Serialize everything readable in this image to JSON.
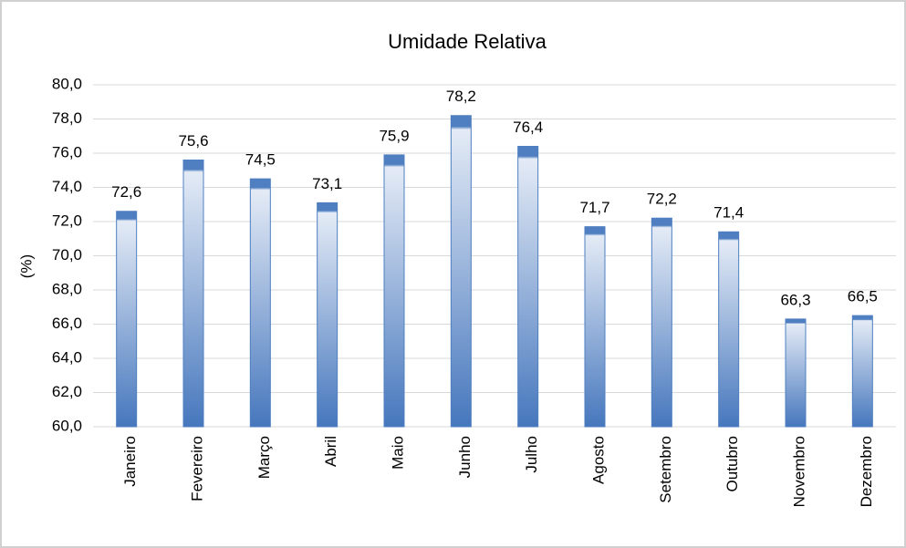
{
  "chart_data": {
    "type": "bar",
    "title": "Umidade Relativa",
    "y_label": "(%)",
    "categories": [
      "Janeiro",
      "Fevereiro",
      "Março",
      "Abril",
      "Maio",
      "Junho",
      "Julho",
      "Agosto",
      "Setembro",
      "Outubro",
      "Novembro",
      "Dezembro"
    ],
    "values": [
      72.6,
      75.6,
      74.5,
      73.1,
      75.9,
      78.2,
      76.4,
      71.7,
      72.2,
      71.4,
      66.3,
      66.5
    ],
    "value_labels": [
      "72,6",
      "75,6",
      "74,5",
      "73,1",
      "75,9",
      "78,2",
      "76,4",
      "71,7",
      "72,2",
      "71,4",
      "66,3",
      "66,5"
    ],
    "color": "#4f7fc0",
    "ylim": [
      60,
      80
    ],
    "yticks": [
      {
        "value": 60,
        "label": "60,0"
      },
      {
        "value": 62,
        "label": "62,0"
      },
      {
        "value": 64,
        "label": "64,0"
      },
      {
        "value": 66,
        "label": "66,0"
      },
      {
        "value": 68,
        "label": "68,0"
      },
      {
        "value": 70,
        "label": "70,0"
      },
      {
        "value": 72,
        "label": "72,0"
      },
      {
        "value": 74,
        "label": "74,0"
      },
      {
        "value": 76,
        "label": "76,0"
      },
      {
        "value": 78,
        "label": "78,0"
      },
      {
        "value": 80,
        "label": "80,0"
      }
    ],
    "grid": true
  }
}
